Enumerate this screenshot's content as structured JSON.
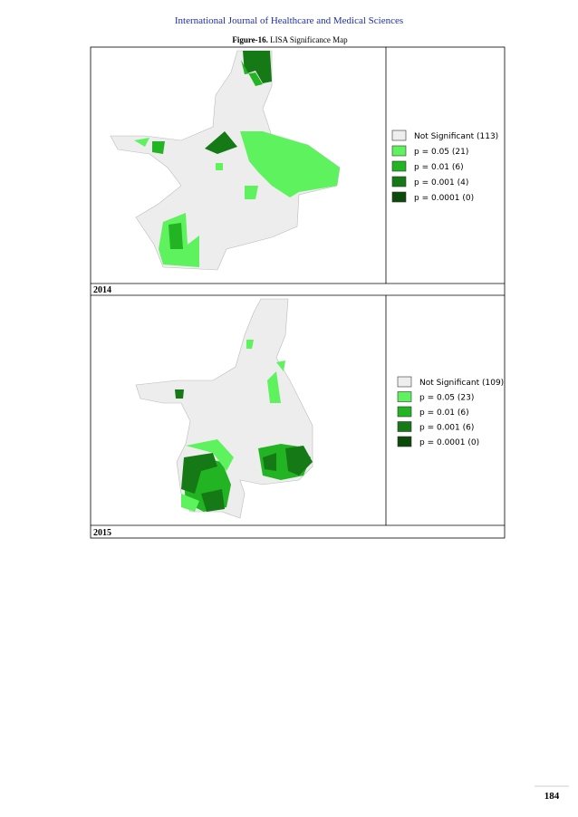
{
  "header": {
    "journal": "International Journal of Healthcare and Medical Sciences"
  },
  "figure": {
    "label": "Figure-16.",
    "title": "LISA Significance Map"
  },
  "panels": [
    {
      "year": "2014",
      "legend": [
        {
          "label": "Not Significant (113)",
          "color": "#eeeeee"
        },
        {
          "label": "p = 0.05 (21)",
          "color": "#5ef25e"
        },
        {
          "label": "p = 0.01 (6)",
          "color": "#22b422"
        },
        {
          "label": "p = 0.001 (4)",
          "color": "#157a15"
        },
        {
          "label": "p = 0.0001 (0)",
          "color": "#0b4a0b"
        }
      ]
    },
    {
      "year": "2015",
      "legend": [
        {
          "label": "Not Significant (109)",
          "color": "#eeeeee"
        },
        {
          "label": "p = 0.05 (23)",
          "color": "#5ef25e"
        },
        {
          "label": "p = 0.01 (6)",
          "color": "#22b422"
        },
        {
          "label": "p = 0.001 (6)",
          "color": "#157a15"
        },
        {
          "label": "p = 0.0001 (0)",
          "color": "#0b4a0b"
        }
      ]
    }
  ],
  "page_number": "184"
}
